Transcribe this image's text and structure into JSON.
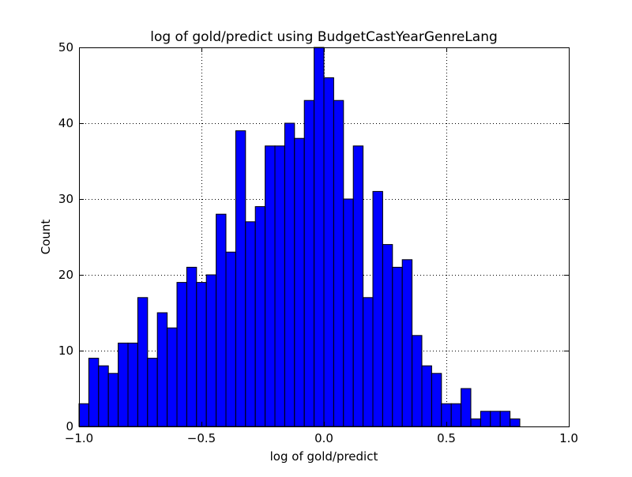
{
  "chart_data": {
    "type": "bar",
    "title": "log of gold/predict using BudgetCastYearGenreLang",
    "xlabel": "log of gold/predict",
    "ylabel": "Count",
    "xlim": [
      -1.0,
      1.0
    ],
    "ylim": [
      0,
      50
    ],
    "x_ticks": [
      -1.0,
      -0.5,
      0.0,
      0.5,
      1.0
    ],
    "x_tick_labels": [
      "−1.0",
      "−0.5",
      "0.0",
      "0.5",
      "1.0"
    ],
    "y_ticks": [
      0,
      10,
      20,
      30,
      40,
      50
    ],
    "y_tick_labels": [
      "0",
      "10",
      "20",
      "30",
      "40",
      "50"
    ],
    "grid": true,
    "bar_color": "#0000ff",
    "bin_start": -1.0,
    "bin_width": 0.04,
    "values": [
      3,
      9,
      8,
      7,
      11,
      11,
      17,
      9,
      15,
      13,
      19,
      21,
      19,
      20,
      28,
      23,
      39,
      27,
      29,
      37,
      37,
      40,
      38,
      43,
      50,
      46,
      43,
      30,
      37,
      17,
      31,
      24,
      21,
      22,
      12,
      8,
      7,
      3,
      3,
      5,
      1,
      2,
      2,
      2,
      1
    ]
  }
}
